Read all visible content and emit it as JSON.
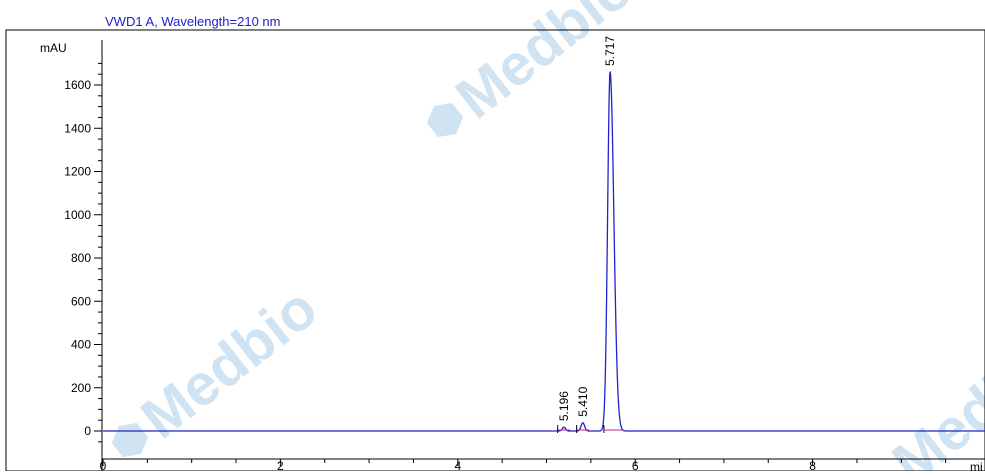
{
  "chart_data": {
    "type": "line",
    "title": "VWD1 A, Wavelength=210 nm",
    "ylabel": "mAU",
    "xlabel": "mi",
    "xlim": [
      0,
      10
    ],
    "ylim": [
      -100,
      1800
    ],
    "xticks": [
      "0",
      "2",
      "4",
      "6",
      "8"
    ],
    "yticks": [
      "0",
      "200",
      "400",
      "600",
      "800",
      "1000",
      "1200",
      "1400",
      "1600"
    ],
    "series": [
      {
        "color": "#2222cc",
        "peaks": [
          {
            "rt": 5.196,
            "height": 18,
            "label": "5.196"
          },
          {
            "rt": 5.41,
            "height": 38,
            "label": "5.410"
          },
          {
            "rt": 5.717,
            "height": 1660,
            "label": "5.717"
          }
        ]
      }
    ],
    "baseline_color": "#d0208a",
    "grid": false
  },
  "watermark": {
    "text": "Medbio",
    "color": "#cfe3f3"
  }
}
